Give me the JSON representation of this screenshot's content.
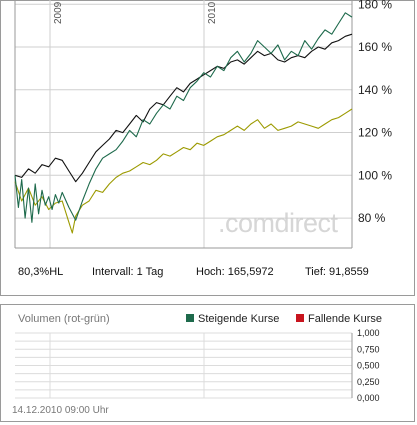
{
  "chart_data": [
    {
      "type": "line",
      "title": "",
      "x_labels": [
        "2009",
        "2010"
      ],
      "y_ticks": [
        "180 %",
        "160 %",
        "140 %",
        "120 %",
        "100 %",
        "80 %"
      ],
      "y_tick_values": [
        180,
        160,
        140,
        120,
        100,
        80
      ],
      "ylim": [
        66,
        182
      ],
      "xlim": [
        0,
        100
      ],
      "grid": true,
      "series": [
        {
          "color": "#111111",
          "x": [
            0,
            2,
            4,
            6,
            8,
            10,
            12,
            14,
            16,
            18,
            20,
            22,
            24,
            26,
            28,
            30,
            32,
            34,
            36,
            38,
            40,
            42,
            44,
            46,
            48,
            50,
            52,
            54,
            56,
            58,
            60,
            62,
            64,
            66,
            68,
            70,
            72,
            74,
            76,
            78,
            80,
            82,
            84,
            86,
            88,
            90,
            92,
            94,
            96,
            98,
            100
          ],
          "y": [
            100,
            99,
            103,
            101,
            105,
            104,
            108,
            107,
            102,
            97,
            101,
            106,
            111,
            114,
            117,
            121,
            120,
            124,
            128,
            125,
            131,
            134,
            133,
            137,
            141,
            139,
            143,
            145,
            147,
            149,
            151,
            150,
            153,
            154,
            152,
            155,
            158,
            156,
            157,
            154,
            153,
            155,
            156,
            155,
            158,
            160,
            159,
            162,
            163,
            165,
            166
          ]
        },
        {
          "color": "#1e6a4c",
          "x": [
            0,
            1,
            2,
            3,
            4,
            5,
            6,
            7,
            8,
            9,
            10,
            11,
            12,
            13,
            14,
            16,
            18,
            20,
            22,
            24,
            26,
            28,
            30,
            32,
            34,
            36,
            38,
            40,
            42,
            44,
            46,
            48,
            50,
            52,
            54,
            56,
            58,
            60,
            62,
            64,
            66,
            68,
            70,
            72,
            74,
            76,
            78,
            80,
            82,
            84,
            86,
            88,
            90,
            92,
            94,
            96,
            98,
            100
          ],
          "y": [
            100,
            85,
            98,
            80,
            94,
            78,
            96,
            82,
            93,
            86,
            90,
            84,
            91,
            87,
            92,
            85,
            79,
            88,
            96,
            103,
            108,
            110,
            112,
            116,
            121,
            118,
            126,
            124,
            129,
            133,
            131,
            137,
            135,
            141,
            144,
            148,
            146,
            151,
            149,
            155,
            158,
            153,
            157,
            163,
            160,
            157,
            161,
            154,
            158,
            156,
            163,
            159,
            164,
            168,
            166,
            171,
            176,
            174
          ]
        },
        {
          "color": "#9c9a00",
          "x": [
            0,
            2,
            4,
            6,
            8,
            10,
            12,
            14,
            16,
            17,
            18,
            20,
            22,
            24,
            26,
            28,
            30,
            32,
            34,
            36,
            38,
            40,
            42,
            44,
            46,
            48,
            50,
            52,
            54,
            56,
            58,
            60,
            62,
            64,
            66,
            68,
            70,
            72,
            74,
            76,
            78,
            80,
            82,
            84,
            86,
            88,
            90,
            92,
            94,
            96,
            98,
            100
          ],
          "y": [
            97,
            88,
            94,
            86,
            90,
            84,
            87,
            88,
            78,
            73,
            81,
            86,
            88,
            93,
            92,
            96,
            99,
            101,
            102,
            104,
            106,
            105,
            107,
            110,
            109,
            111,
            113,
            112,
            115,
            114,
            116,
            118,
            119,
            121,
            123,
            121,
            124,
            126,
            122,
            124,
            121,
            122,
            123,
            125,
            124,
            123,
            122,
            124,
            126,
            127,
            129,
            131
          ]
        }
      ]
    },
    {
      "type": "bar",
      "title": "Volumen (rot-grün)",
      "y_ticks": [
        "1,000",
        "0,750",
        "0,500",
        "0,250",
        "0,000"
      ],
      "y_tick_values": [
        1,
        0.75,
        0.5,
        0.25,
        0
      ],
      "ylim": [
        0,
        1
      ],
      "series": [
        {
          "name": "Steigende Kurse",
          "color": "#1e6a4c",
          "values": []
        },
        {
          "name": "Fallende Kurse",
          "color": "#c8141e",
          "values": []
        }
      ]
    }
  ],
  "info": {
    "hl": "80,3%HL",
    "interval": "Intervall: 1 Tag",
    "high": "Hoch: 165,5972",
    "low": "Tief: 91,8559"
  },
  "watermark": ".comdirect",
  "footer_date": "14.12.2010 09:00 Uhr",
  "colors": {
    "grid": "#cfcfcf",
    "axis": "#9a9a9a"
  }
}
